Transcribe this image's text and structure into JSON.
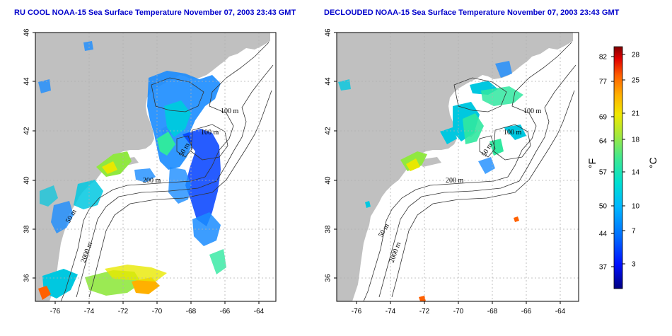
{
  "panels": [
    {
      "title": "RU COOL NOAA-15 Sea Surface Temperature November 07, 2003 23:43 GMT",
      "lat_ticks": [
        "46",
        "44",
        "42",
        "40",
        "38",
        "36"
      ],
      "lon_ticks": [
        "-76",
        "-74",
        "-72",
        "-70",
        "-68",
        "-66",
        "-64"
      ],
      "contour_labels": [
        "100 m",
        "100 m",
        "200 m",
        "50 m",
        "50 m",
        "2000 m"
      ]
    },
    {
      "title": "DECLOUDED NOAA-15 Sea Surface Temperature November 07, 2003 23:43 GMT",
      "lat_ticks": [
        "46",
        "44",
        "42",
        "40",
        "38",
        "36"
      ],
      "lon_ticks": [
        "-76",
        "-74",
        "-72",
        "-70",
        "-68",
        "-66",
        "-64"
      ],
      "contour_labels": [
        "100 m",
        "100 m",
        "200 m",
        "50 m",
        "50 m",
        "2000 m"
      ]
    }
  ],
  "colorbar": {
    "f_ticks": [
      "82",
      "77",
      "69",
      "64",
      "57",
      "50",
      "44",
      "37"
    ],
    "c_ticks": [
      "28",
      "25",
      "21",
      "18",
      "14",
      "10",
      "7",
      "3"
    ],
    "f_unit": "°F",
    "c_unit": "°C",
    "colors": [
      "#000080",
      "#0000ff",
      "#0060ff",
      "#00a8ff",
      "#00e0e0",
      "#30e8a0",
      "#90e840",
      "#e8e800",
      "#ffb000",
      "#ff6000",
      "#e00000",
      "#800000"
    ]
  },
  "map_colors": {
    "land": "#c0c0c0",
    "water": "#ffffff",
    "grid": "#b0b0b0"
  }
}
